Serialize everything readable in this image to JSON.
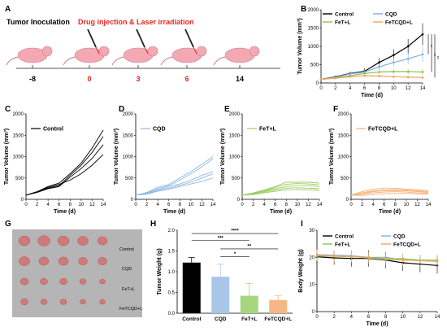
{
  "panel_letters": [
    "A",
    "B",
    "C",
    "D",
    "E",
    "F",
    "G",
    "H",
    "I"
  ],
  "timeline": {
    "inoculation_label": "Tumor Inoculation",
    "treatment_label": "Drug injection & Laser irradiation",
    "days": [
      {
        "label": "-8",
        "color": "#000000"
      },
      {
        "label": "0",
        "color": "#e8261d"
      },
      {
        "label": "3",
        "color": "#e8261d"
      },
      {
        "label": "6",
        "color": "#e8261d"
      },
      {
        "label": "14",
        "color": "#000000"
      }
    ],
    "colors": {
      "treatment": "#e8261d",
      "mouse": "#f3a8b4"
    }
  },
  "photo": {
    "row_labels": [
      "Control",
      "CQD",
      "FeT+L",
      "FeTCQD+L"
    ],
    "background": "#b5b5b5",
    "tumor_color": "#cf7a7a"
  },
  "chart_data": [
    {
      "panel": "B",
      "type": "line",
      "xlabel": "Time (d)",
      "ylabel": "Tumor Volume (mm³)",
      "xlim": [
        0,
        14
      ],
      "ylim": [
        0,
        2000
      ],
      "xticks": [
        0,
        2,
        4,
        6,
        8,
        10,
        12,
        14
      ],
      "yticks": [
        0,
        500,
        1000,
        1500,
        2000
      ],
      "x": [
        0,
        2,
        4,
        6,
        8,
        10,
        12,
        14
      ],
      "legend": "top",
      "significance": [
        "**",
        "**",
        "**"
      ],
      "series": [
        {
          "name": "Control",
          "color": "#000000",
          "values": [
            100,
            170,
            260,
            320,
            560,
            760,
            1000,
            1330
          ],
          "err": [
            10,
            30,
            50,
            80,
            120,
            160,
            200,
            300
          ]
        },
        {
          "name": "CQD",
          "color": "#7eaede",
          "values": [
            100,
            160,
            250,
            300,
            440,
            560,
            660,
            780
          ],
          "err": [
            10,
            25,
            40,
            60,
            90,
            110,
            140,
            200
          ]
        },
        {
          "name": "FeT+L",
          "color": "#8bc34a",
          "values": [
            100,
            140,
            200,
            260,
            300,
            310,
            310,
            300
          ],
          "err": [
            10,
            20,
            30,
            40,
            50,
            60,
            70,
            80
          ]
        },
        {
          "name": "FeTCQD+L",
          "color": "#f5a25d",
          "values": [
            100,
            130,
            170,
            200,
            190,
            170,
            160,
            150
          ],
          "err": [
            10,
            20,
            25,
            30,
            35,
            40,
            40,
            40
          ]
        }
      ]
    },
    {
      "panel": "C",
      "type": "line",
      "xlabel": "Time (d)",
      "ylabel": "Tumor Volume (mm³)",
      "xlim": [
        0,
        14
      ],
      "ylim": [
        0,
        2000
      ],
      "xticks": [
        0,
        2,
        4,
        6,
        8,
        10,
        12,
        14
      ],
      "yticks": [
        0,
        500,
        1000,
        1500,
        2000
      ],
      "x": [
        0,
        2,
        4,
        6,
        8,
        10,
        12,
        14
      ],
      "legend_label": "Control",
      "color": "#000000",
      "series": [
        {
          "values": [
            100,
            180,
            300,
            380,
            600,
            850,
            1200,
            1620
          ]
        },
        {
          "values": [
            100,
            170,
            260,
            320,
            560,
            800,
            1100,
            1470
          ]
        },
        {
          "values": [
            100,
            160,
            250,
            300,
            520,
            720,
            960,
            1280
          ]
        },
        {
          "values": [
            100,
            170,
            280,
            350,
            450,
            600,
            800,
            1050
          ]
        }
      ]
    },
    {
      "panel": "D",
      "type": "line",
      "xlabel": "Time (d)",
      "ylabel": "Tumor Volume (mm³)",
      "xlim": [
        0,
        14
      ],
      "ylim": [
        0,
        2000
      ],
      "xticks": [
        0,
        2,
        4,
        6,
        8,
        10,
        12,
        14
      ],
      "yticks": [
        0,
        500,
        1000,
        1500,
        2000
      ],
      "x": [
        0,
        2,
        4,
        6,
        8,
        10,
        12,
        14
      ],
      "legend_label": "CQD",
      "color": "#8fb8e3",
      "series": [
        {
          "values": [
            100,
            160,
            280,
            350,
            500,
            650,
            820,
            1000
          ]
        },
        {
          "values": [
            100,
            150,
            250,
            320,
            450,
            600,
            760,
            950
          ]
        },
        {
          "values": [
            100,
            140,
            220,
            300,
            360,
            450,
            560,
            650
          ]
        },
        {
          "values": [
            100,
            130,
            200,
            260,
            330,
            400,
            500,
            600
          ]
        },
        {
          "values": [
            100,
            120,
            190,
            240,
            300,
            360,
            420,
            500
          ]
        }
      ]
    },
    {
      "panel": "E",
      "type": "line",
      "xlabel": "Time (d)",
      "ylabel": "Tumor Volume (mm³)",
      "xlim": [
        0,
        14
      ],
      "ylim": [
        0,
        2000
      ],
      "xticks": [
        0,
        2,
        4,
        6,
        8,
        10,
        12,
        14
      ],
      "yticks": [
        0,
        500,
        1000,
        1500,
        2000
      ],
      "x": [
        0,
        2,
        4,
        6,
        8,
        10,
        12,
        14
      ],
      "legend_label": "FeT+L",
      "color": "#9ccc65",
      "series": [
        {
          "values": [
            100,
            150,
            220,
            300,
            400,
            400,
            400,
            380
          ]
        },
        {
          "values": [
            100,
            140,
            200,
            280,
            350,
            370,
            360,
            340
          ]
        },
        {
          "values": [
            100,
            130,
            190,
            250,
            300,
            320,
            320,
            300
          ]
        },
        {
          "values": [
            100,
            120,
            170,
            220,
            260,
            270,
            260,
            250
          ]
        },
        {
          "values": [
            100,
            110,
            150,
            190,
            220,
            230,
            220,
            210
          ]
        }
      ]
    },
    {
      "panel": "F",
      "type": "line",
      "xlabel": "Time (d)",
      "ylabel": "Tumor Volume (mm³)",
      "xlim": [
        0,
        14
      ],
      "ylim": [
        0,
        2000
      ],
      "xticks": [
        0,
        2,
        4,
        6,
        8,
        10,
        12,
        14
      ],
      "yticks": [
        0,
        500,
        1000,
        1500,
        2000
      ],
      "x": [
        0,
        2,
        4,
        6,
        8,
        10,
        12,
        14
      ],
      "legend_label": "FeTCQD+L",
      "color": "#f7b27a",
      "series": [
        {
          "values": [
            100,
            180,
            240,
            260,
            260,
            240,
            220,
            200
          ]
        },
        {
          "values": [
            100,
            150,
            200,
            220,
            230,
            220,
            200,
            180
          ]
        },
        {
          "values": [
            100,
            130,
            180,
            200,
            210,
            200,
            180,
            160
          ]
        },
        {
          "values": [
            100,
            120,
            150,
            170,
            180,
            170,
            150,
            140
          ]
        },
        {
          "values": [
            100,
            90,
            110,
            130,
            140,
            140,
            130,
            120
          ]
        }
      ]
    },
    {
      "panel": "H",
      "type": "bar",
      "xlabel": "",
      "ylabel": "Tumor Weight (g)",
      "ylim": [
        0,
        2.0
      ],
      "yticks": [
        0.0,
        0.5,
        1.0,
        1.5,
        2.0
      ],
      "categories": [
        "Control",
        "CQD",
        "FeT+L",
        "FeTCQD+L"
      ],
      "values": [
        1.22,
        0.88,
        0.42,
        0.32
      ],
      "err": [
        0.12,
        0.3,
        0.3,
        0.1
      ],
      "colors": [
        "#000000",
        "#a9c6e8",
        "#a5d67f",
        "#f6b785"
      ],
      "significance": [
        {
          "from": 0,
          "to": 3,
          "label": "****"
        },
        {
          "from": 0,
          "to": 2,
          "label": "***"
        },
        {
          "from": 1,
          "to": 3,
          "label": "**"
        },
        {
          "from": 1,
          "to": 2,
          "label": "*"
        }
      ]
    },
    {
      "panel": "I",
      "type": "line",
      "xlabel": "Time (d)",
      "ylabel": "Body Weight (g)",
      "xlim": [
        0,
        14
      ],
      "ylim": [
        0,
        30
      ],
      "xticks": [
        0,
        2,
        4,
        6,
        8,
        10,
        12,
        14
      ],
      "yticks": [
        0,
        10,
        20,
        30
      ],
      "x": [
        0,
        2,
        4,
        6,
        8,
        10,
        12,
        14
      ],
      "legend": "top",
      "series": [
        {
          "name": "Control",
          "color": "#000000",
          "values": [
            20.2,
            19.8,
            19.6,
            19.6,
            19.0,
            18.0,
            17.5,
            17.0
          ],
          "err": [
            2.5,
            2.5,
            3,
            3,
            3,
            3,
            3,
            3
          ]
        },
        {
          "name": "CQD",
          "color": "#7eaede",
          "values": [
            21.0,
            20.8,
            20.6,
            20.0,
            20.0,
            19.0,
            18.8,
            18.5
          ],
          "err": [
            2,
            2,
            2,
            2,
            2,
            2,
            2,
            2
          ]
        },
        {
          "name": "FeT+L",
          "color": "#8bc34a",
          "values": [
            20.5,
            20.4,
            20.2,
            20.0,
            19.5,
            19.5,
            19.0,
            19.0
          ],
          "err": [
            2,
            2,
            2,
            2,
            2,
            2,
            2,
            2
          ]
        },
        {
          "name": "FeTCQD+L",
          "color": "#f5a25d",
          "values": [
            20.8,
            20.5,
            20.3,
            19.8,
            19.2,
            19.0,
            18.8,
            18.5
          ],
          "err": [
            2,
            2,
            2,
            2,
            2,
            2,
            2,
            2
          ]
        }
      ]
    }
  ]
}
